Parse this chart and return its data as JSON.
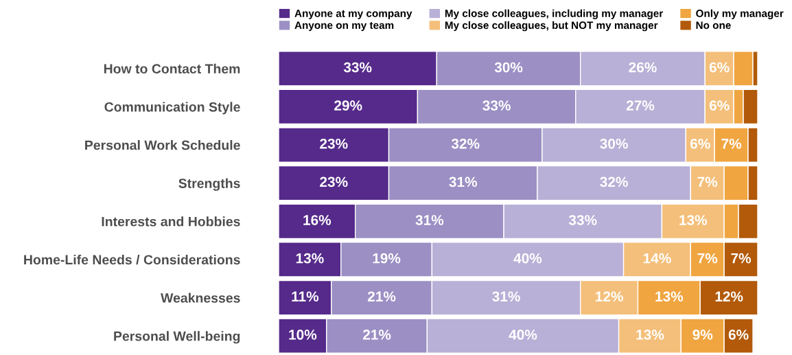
{
  "chart_data": {
    "type": "bar",
    "orientation": "horizontal",
    "stacked": true,
    "legend": "top",
    "categories": [
      "How to Contact Them",
      "Communication Style",
      "Personal Work Schedule",
      "Strengths",
      "Interests and Hobbies",
      "Home-Life Needs / Considerations",
      "Weaknesses",
      "Personal Well-being"
    ],
    "series": [
      {
        "name": "Anyone at my company",
        "color": "#552a8a",
        "values": [
          33,
          29,
          23,
          23,
          16,
          13,
          11,
          10
        ],
        "value_labels": [
          "33%",
          "29%",
          "23%",
          "23%",
          "16%",
          "13%",
          "11%",
          "10%"
        ]
      },
      {
        "name": "Anyone on my team",
        "color": "#9b8fc4",
        "values": [
          30,
          33,
          32,
          31,
          31,
          19,
          21,
          21
        ],
        "value_labels": [
          "30%",
          "33%",
          "32%",
          "31%",
          "31%",
          "19%",
          "21%",
          "21%"
        ]
      },
      {
        "name": "My close colleagues, including my manager",
        "color": "#b8b0d6",
        "values": [
          26,
          27,
          30,
          32,
          33,
          40,
          31,
          40
        ],
        "value_labels": [
          "26%",
          "27%",
          "30%",
          "32%",
          "33%",
          "40%",
          "31%",
          "40%"
        ]
      },
      {
        "name": "My close colleagues, but NOT my manager",
        "color": "#f4bf7a",
        "values": [
          6,
          6,
          6,
          7,
          13,
          14,
          12,
          13
        ],
        "value_labels": [
          "6%",
          "6%",
          "6%",
          "7%",
          "13%",
          "14%",
          "12%",
          "13%"
        ]
      },
      {
        "name": "Only my manager",
        "color": "#f0a540",
        "values": [
          4,
          2,
          7,
          5,
          3,
          7,
          13,
          9
        ],
        "value_labels": [
          null,
          null,
          "7%",
          null,
          null,
          "7%",
          "13%",
          "9%"
        ]
      },
      {
        "name": "No one",
        "color": "#b25a09",
        "values": [
          1,
          3,
          2,
          2,
          4,
          7,
          12,
          6
        ],
        "value_labels": [
          null,
          null,
          null,
          null,
          null,
          "7%",
          "12%",
          "6%"
        ]
      }
    ]
  }
}
